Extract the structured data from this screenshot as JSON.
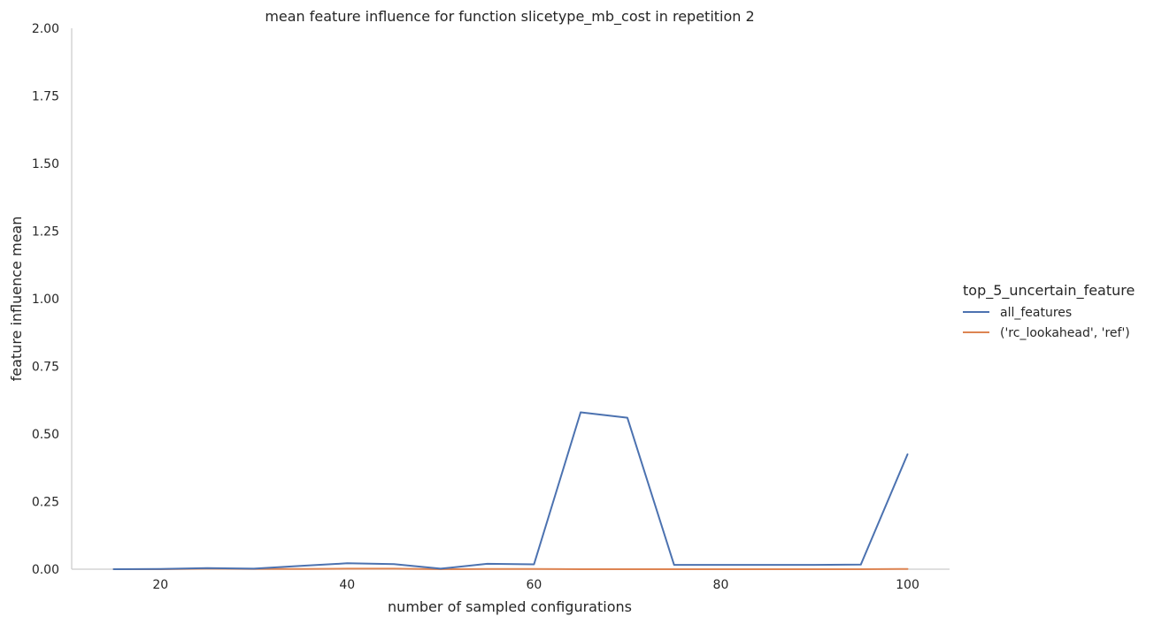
{
  "chart_data": {
    "type": "line",
    "title": "mean feature influence for function slicetype_mb_cost in repetition 2",
    "xlabel": "number of sampled configurations",
    "ylabel": "feature influence mean",
    "xlim": [
      10.5,
      104.5
    ],
    "ylim": [
      0,
      2
    ],
    "xticks": [
      20,
      40,
      60,
      80,
      100
    ],
    "yticks": [
      0.0,
      0.25,
      0.5,
      0.75,
      1.0,
      1.25,
      1.5,
      1.75,
      2.0
    ],
    "xtick_labels": [
      "20",
      "40",
      "60",
      "80",
      "100"
    ],
    "ytick_labels": [
      "0.00",
      "0.25",
      "0.50",
      "0.75",
      "1.00",
      "1.25",
      "1.50",
      "1.75",
      "2.00"
    ],
    "grid": false,
    "legend": {
      "title": "top_5_uncertain_feature",
      "placement": "right"
    },
    "series": [
      {
        "name": "all_features",
        "color": "#4c72b0",
        "x": [
          15,
          20,
          25,
          30,
          35,
          40,
          45,
          50,
          55,
          60,
          65,
          70,
          75,
          80,
          85,
          90,
          95,
          100
        ],
        "y": [
          0.0,
          0.001,
          0.004,
          0.002,
          0.012,
          0.022,
          0.019,
          0.002,
          0.02,
          0.018,
          0.58,
          0.56,
          0.016,
          0.016,
          0.016,
          0.016,
          0.017,
          0.425
        ]
      },
      {
        "name": "('rc_lookahead', 'ref')",
        "color": "#dd8452",
        "x": [
          15,
          20,
          25,
          30,
          35,
          40,
          45,
          50,
          55,
          60,
          65,
          70,
          75,
          80,
          85,
          90,
          95,
          100
        ],
        "y": [
          0.0,
          0.0,
          0.002,
          0.001,
          0.001,
          0.002,
          0.002,
          0.0,
          0.001,
          0.001,
          0.0,
          0.0,
          0.0,
          0.0,
          0.0,
          0.0,
          0.0,
          0.001
        ]
      }
    ]
  }
}
